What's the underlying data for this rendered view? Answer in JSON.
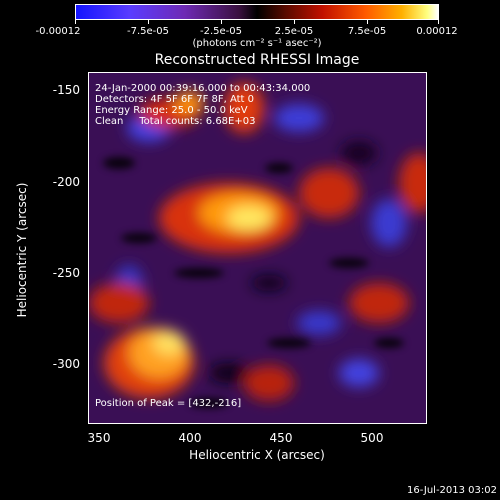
{
  "colorbar": {
    "tick_labels": [
      "-0.00012",
      "-7.5e-05",
      "-2.5e-05",
      "2.5e-05",
      "7.5e-05",
      "0.00012"
    ],
    "units": "(photons cm⁻² s⁻¹ asec⁻²)"
  },
  "title": "Reconstructed RHESSI Image",
  "info": {
    "time_range": "24-Jan-2000 00:39:16.000 to 00:43:34.000",
    "detectors": "Detectors: 4F 5F 6F 7F 8F, Att 0",
    "energy_range": "Energy Range: 25.0 - 50.0 keV",
    "clean": "Clean     Total counts: 6.68E+03",
    "peak": "Position of Peak = [432,-216]"
  },
  "axes": {
    "xlabel": "Heliocentric X (arcsec)",
    "ylabel": "Heliocentric Y (arcsec)",
    "xticks": [
      "350",
      "400",
      "450",
      "500"
    ],
    "yticks": [
      "-150",
      "-200",
      "-250",
      "-300"
    ]
  },
  "timestamp": "16-Jul-2013 03:02"
}
